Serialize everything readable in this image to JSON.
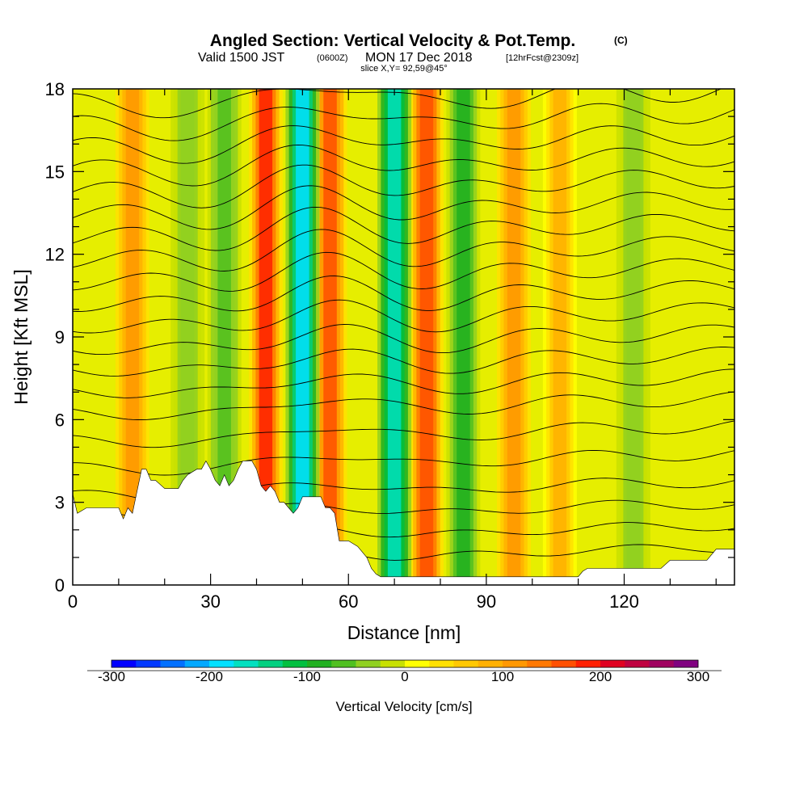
{
  "title": {
    "main": "Angled Section: Vertical Velocity & Pot.Temp.",
    "copyright": "(C)",
    "valid_prefix": "Valid 1500 JST",
    "valid_z": "(0600Z)",
    "valid_date": "MON 17 Dec 2018",
    "forecast": "[12hrFcst@2309z]",
    "slice": "slice X,Y= 92,59@45°"
  },
  "chart_data": {
    "type": "heatmap",
    "xlabel": "Distance [nm]",
    "ylabel": "Height [Kft MSL]",
    "xlim": [
      0,
      144
    ],
    "ylim": [
      0,
      18
    ],
    "x_ticks": [
      0,
      30,
      60,
      90,
      120
    ],
    "y_ticks": [
      0,
      3,
      6,
      9,
      12,
      15,
      18
    ],
    "colorbar": {
      "title": "Vertical Velocity [cm/s]",
      "range": [
        -300,
        300
      ],
      "tick_values": [
        -300,
        -200,
        -100,
        0,
        100,
        200,
        300
      ],
      "tick_labels": [
        "-300",
        "-200",
        "-100",
        "0",
        "100",
        "200",
        "300"
      ],
      "colors": [
        "#0000ff",
        "#0038ff",
        "#0070ff",
        "#00a8ff",
        "#00e0ff",
        "#00e0c0",
        "#00d080",
        "#00c040",
        "#20b020",
        "#50c020",
        "#90d020",
        "#c8e000",
        "#ffff00",
        "#ffe000",
        "#ffc800",
        "#ffb000",
        "#ff9800",
        "#ff7800",
        "#ff5000",
        "#ff2000",
        "#e00020",
        "#c00040",
        "#a00060",
        "#800080"
      ]
    },
    "updraft_bands": [
      {
        "x": 13,
        "value": 100
      },
      {
        "x": 42,
        "value": 180
      },
      {
        "x": 56,
        "value": 160
      },
      {
        "x": 77,
        "value": 170
      },
      {
        "x": 96,
        "value": 120
      },
      {
        "x": 106,
        "value": 80
      }
    ],
    "downdraft_bands": [
      {
        "x": 50,
        "value": -180
      },
      {
        "x": 70,
        "value": -160
      },
      {
        "x": 85,
        "value": -90
      },
      {
        "x": 33,
        "value": -60
      },
      {
        "x": 25,
        "value": -50
      },
      {
        "x": 122,
        "value": -40
      }
    ],
    "terrain_profile": {
      "x": [
        0,
        1,
        3,
        10,
        11,
        12,
        13,
        14,
        15,
        16,
        17,
        18,
        20,
        21,
        23,
        24,
        25,
        27,
        28,
        29,
        30,
        31,
        32,
        33,
        34,
        35,
        36,
        37,
        38,
        39,
        40,
        41,
        42,
        43,
        44,
        45,
        46,
        47,
        48,
        49,
        50,
        51,
        53,
        54,
        55,
        56,
        57,
        58,
        60,
        62,
        63,
        64,
        65,
        66,
        67,
        68,
        70,
        72,
        75,
        80,
        85,
        90,
        100,
        110,
        111,
        112,
        115,
        120,
        125,
        128,
        130,
        135,
        138,
        140,
        144
      ],
      "height": [
        3.3,
        2.6,
        2.8,
        2.8,
        2.4,
        2.8,
        2.6,
        3.4,
        4.2,
        4.2,
        3.8,
        3.8,
        3.5,
        3.5,
        3.5,
        3.8,
        4.0,
        4.2,
        4.2,
        4.5,
        4.2,
        3.8,
        3.6,
        4.0,
        3.6,
        3.8,
        4.2,
        4.5,
        4.5,
        4.5,
        4.2,
        3.6,
        3.4,
        3.6,
        3.4,
        3.0,
        3.0,
        2.8,
        2.6,
        2.8,
        3.2,
        3.2,
        3.2,
        3.2,
        2.8,
        2.8,
        2.6,
        1.6,
        1.6,
        1.4,
        1.2,
        1.0,
        0.6,
        0.4,
        0.3,
        0.3,
        0.3,
        0.3,
        0.3,
        0.3,
        0.3,
        0.3,
        0.3,
        0.3,
        0.5,
        0.6,
        0.6,
        0.6,
        0.6,
        0.6,
        0.9,
        0.9,
        0.9,
        1.3,
        1.3
      ]
    },
    "isentrope_levels": [
      {
        "base": 0.8
      },
      {
        "base": 1.6
      },
      {
        "base": 2.4
      },
      {
        "base": 3.2
      },
      {
        "base": 4.2
      },
      {
        "base": 5.2
      },
      {
        "base": 6.2
      },
      {
        "base": 7.0
      },
      {
        "base": 7.8
      },
      {
        "base": 8.6
      },
      {
        "base": 9.4
      },
      {
        "base": 10.2
      },
      {
        "base": 11.0
      },
      {
        "base": 11.8
      },
      {
        "base": 12.6
      },
      {
        "base": 13.4
      },
      {
        "base": 14.2
      },
      {
        "base": 15.0
      },
      {
        "base": 15.8
      },
      {
        "base": 16.6
      },
      {
        "base": 17.4
      }
    ]
  }
}
